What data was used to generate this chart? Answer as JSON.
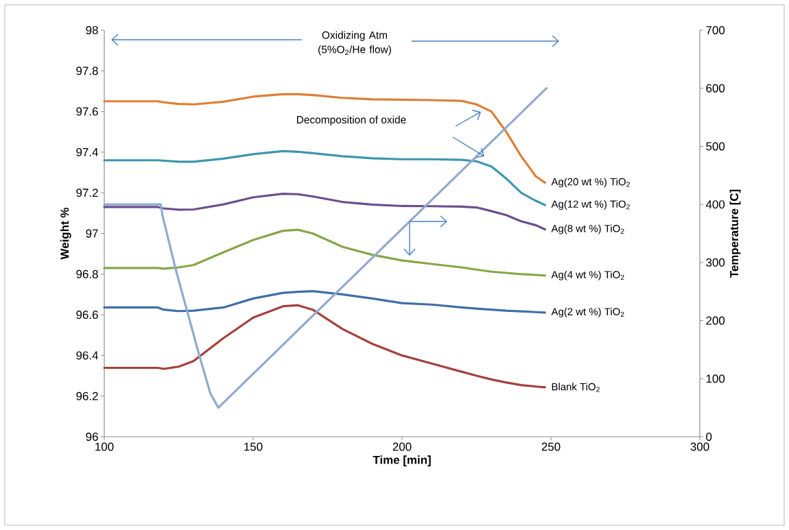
{
  "chart_data": {
    "type": "line",
    "xlabel": "Time [min]",
    "ylabel": "Weight %",
    "y2label": "Temperature [C]",
    "xlim": [
      100,
      300
    ],
    "xticks": [
      100,
      150,
      200,
      250,
      300
    ],
    "ylim": [
      96,
      98
    ],
    "yticks": [
      96,
      96.2,
      96.4,
      96.6,
      96.8,
      97,
      97.2,
      97.4,
      97.6,
      97.8,
      98
    ],
    "y2lim": [
      0,
      700
    ],
    "y2ticks": [
      0,
      100,
      200,
      300,
      400,
      500,
      600,
      700
    ],
    "annotations": [
      "Oxidizing Atm (5%O$_{2}$/He flow)",
      "Decomposition of oxide"
    ],
    "x": [
      100,
      118,
      120,
      125,
      130,
      140,
      150,
      160,
      165,
      170,
      180,
      190,
      200,
      210,
      220,
      225,
      230,
      235,
      240,
      245,
      248
    ],
    "series": [
      {
        "name": "Ag(20 wt %) TiO$_{2}$",
        "color": "#dd7f35",
        "values": [
          97.65,
          97.65,
          97.645,
          97.637,
          97.635,
          97.648,
          97.673,
          97.685,
          97.685,
          97.681,
          97.667,
          97.66,
          97.658,
          97.656,
          97.652,
          97.635,
          97.6,
          97.5,
          97.38,
          97.28,
          97.25
        ]
      },
      {
        "name": "Ag(12 wt %) TiO$_{2}$",
        "color": "#3d96ae",
        "values": [
          97.36,
          97.36,
          97.358,
          97.353,
          97.353,
          97.368,
          97.39,
          97.405,
          97.402,
          97.395,
          97.38,
          97.37,
          97.365,
          97.365,
          97.362,
          97.355,
          97.33,
          97.27,
          97.2,
          97.16,
          97.14
        ]
      },
      {
        "name": "Ag(8 wt %) TiO$_{2}$",
        "color": "#6a4f8e",
        "values": [
          97.13,
          97.13,
          97.123,
          97.117,
          97.118,
          97.143,
          97.178,
          97.195,
          97.193,
          97.182,
          97.155,
          97.142,
          97.135,
          97.134,
          97.132,
          97.128,
          97.11,
          97.09,
          97.06,
          97.04,
          97.02
        ]
      },
      {
        "name": "Ag(4 wt %) TiO$_{2}$",
        "color": "#86a647",
        "values": [
          96.83,
          96.83,
          96.827,
          96.833,
          96.845,
          96.907,
          96.968,
          97.013,
          97.018,
          97.0,
          96.934,
          96.895,
          96.867,
          96.85,
          96.833,
          96.822,
          96.812,
          96.806,
          96.8,
          96.796,
          96.793
        ]
      },
      {
        "name": "Ag(2 wt %) TiO$_{2}$",
        "color": "#3f6ea7",
        "values": [
          96.636,
          96.636,
          96.625,
          96.618,
          96.62,
          96.636,
          96.68,
          96.708,
          96.713,
          96.716,
          96.7,
          96.68,
          96.657,
          96.65,
          96.636,
          96.63,
          96.625,
          96.62,
          96.617,
          96.613,
          96.611
        ]
      },
      {
        "name": "Blank TiO$_{2}$",
        "color": "#a5403c",
        "values": [
          96.339,
          96.339,
          96.334,
          96.345,
          96.373,
          96.485,
          96.586,
          96.642,
          96.647,
          96.625,
          96.53,
          96.457,
          96.4,
          96.36,
          96.32,
          96.3,
          96.282,
          96.267,
          96.254,
          96.247,
          96.243
        ]
      },
      {
        "color": "#8faacf",
        "axis": "y2",
        "x": [
          100,
          119,
          119.5,
          124,
          131.8,
          135.6,
          138.3,
          248.5
        ],
        "values": [
          400,
          400,
          382,
          288,
          142,
          75,
          50,
          600
        ]
      }
    ]
  }
}
